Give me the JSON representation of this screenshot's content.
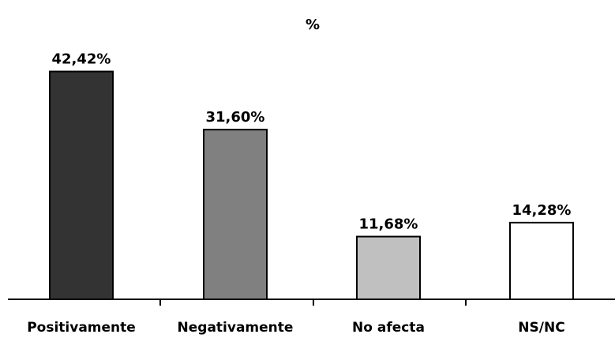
{
  "chart_data": {
    "type": "bar",
    "title": "%",
    "categories": [
      "Positivamente",
      "Negativamente",
      "No afecta",
      "NS/NC"
    ],
    "values": [
      42.42,
      31.6,
      11.68,
      14.28
    ],
    "data_labels": [
      "42,42%",
      "31,60%",
      "11,68%",
      "14,28%"
    ],
    "colors": [
      "#333333",
      "#808080",
      "#c0c0c0",
      "#ffffff"
    ],
    "ylim": [
      0,
      50
    ],
    "grid": false,
    "legend": "none"
  }
}
